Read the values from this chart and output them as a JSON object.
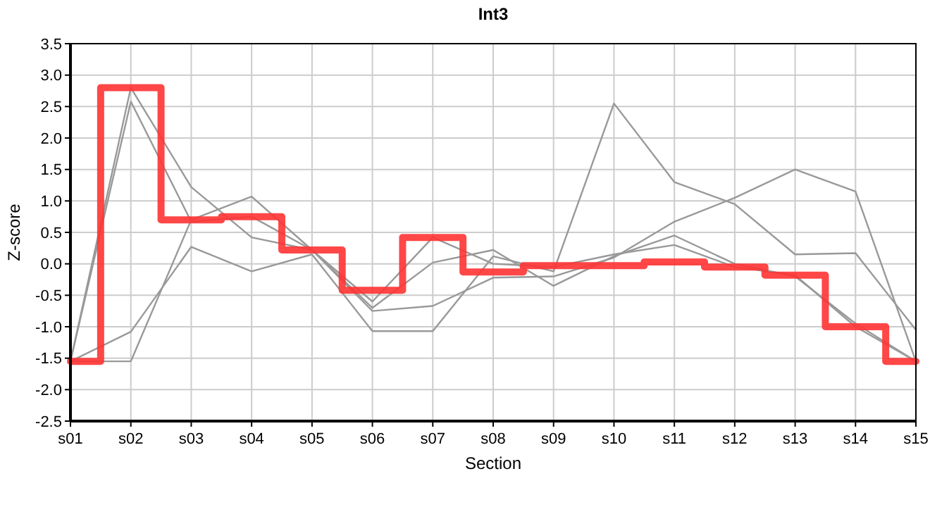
{
  "chart_data": {
    "type": "line",
    "title": "Int3",
    "xlabel": "Section",
    "ylabel": "Z-score",
    "categories": [
      "s01",
      "s02",
      "s03",
      "s04",
      "s05",
      "s06",
      "s07",
      "s08",
      "s09",
      "s10",
      "s11",
      "s12",
      "s13",
      "s14",
      "s15"
    ],
    "ylim": [
      -2.5,
      3.5
    ],
    "yticks": [
      {
        "value": -2.5,
        "label": "-2.5"
      },
      {
        "value": -2,
        "label": "-2.0"
      },
      {
        "value": -1.5,
        "label": "-1.5"
      },
      {
        "value": -1,
        "label": "-1.0"
      },
      {
        "value": -0.5,
        "label": "-0.5"
      },
      {
        "value": 0,
        "label": "0.0"
      },
      {
        "value": 0.5,
        "label": "0.5"
      },
      {
        "value": 1,
        "label": "1.0"
      },
      {
        "value": 1.5,
        "label": "1.5"
      },
      {
        "value": 2,
        "label": "2.0"
      },
      {
        "value": 2.5,
        "label": "2.5"
      },
      {
        "value": 3,
        "label": "3.0"
      },
      {
        "value": 3.5,
        "label": "3.5"
      }
    ],
    "grid": true,
    "marker": "none",
    "series": [
      {
        "color": "#999999",
        "values": [
          -1.55,
          -1.08,
          0.27,
          -0.12,
          0.15,
          -1.07,
          -1.07,
          0.12,
          -0.12,
          2.55,
          1.3,
          0.95,
          0.15,
          0.17,
          -1.05
        ]
      },
      {
        "color": "#999999",
        "values": [
          -1.55,
          -1.55,
          0.7,
          1.07,
          0.22,
          -0.75,
          -0.67,
          -0.22,
          -0.2,
          0.1,
          0.67,
          1.05,
          1.5,
          1.15,
          -1.55
        ]
      },
      {
        "color": "#999999",
        "values": [
          -1.55,
          2.8,
          1.22,
          0.42,
          0.22,
          -0.7,
          0.02,
          0.22,
          -0.35,
          0.12,
          0.45,
          0.0,
          -0.2,
          -0.95,
          -1.55
        ]
      },
      {
        "color": "#999999",
        "values": [
          -1.55,
          2.58,
          0.67,
          0.75,
          0.22,
          -0.6,
          0.42,
          0.0,
          -0.05,
          0.15,
          0.3,
          -0.05,
          -0.18,
          -1.0,
          -1.55
        ]
      },
      {
        "type": "step",
        "color": "#ff3333",
        "values": [
          -1.55,
          2.8,
          0.7,
          0.75,
          0.22,
          -0.42,
          0.42,
          -0.13,
          -0.03,
          -0.03,
          0.03,
          -0.05,
          -0.18,
          -1.0,
          -1.55
        ]
      }
    ]
  }
}
